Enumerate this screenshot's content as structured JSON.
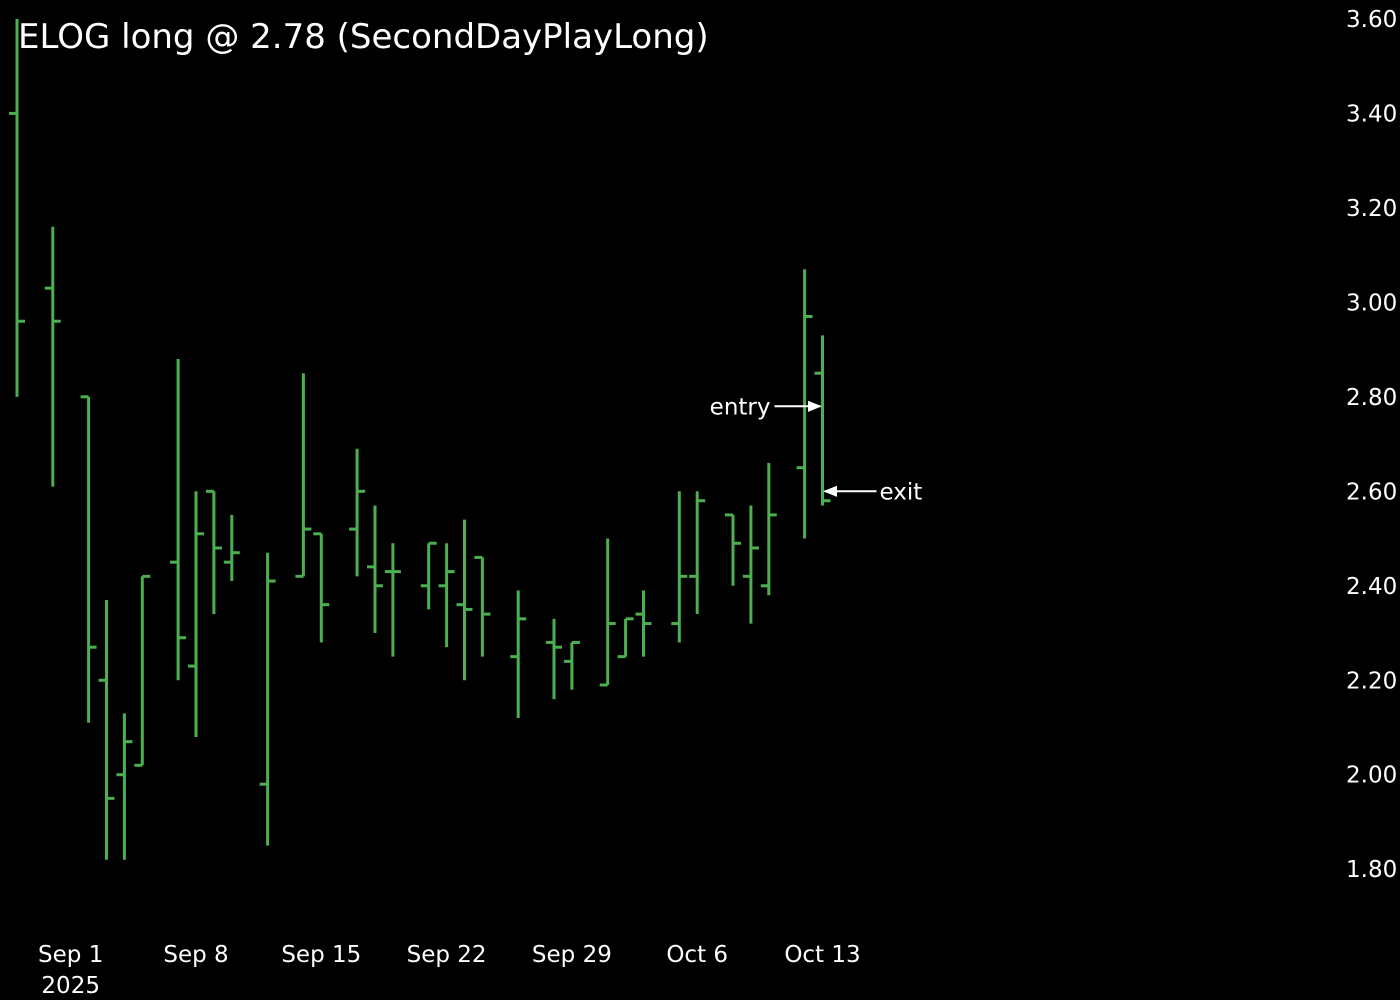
{
  "chart_data": {
    "type": "ohlc",
    "title": "ELOG long @ 2.78 (SecondDayPlayLong)",
    "bar_color": "#4caf50",
    "background": "#000000",
    "text_color": "#ffffff",
    "ylim": [
      1.72,
      3.64
    ],
    "y_axis_side": "right",
    "grid": false,
    "yticks": [
      "1.80",
      "2.00",
      "2.20",
      "2.40",
      "2.60",
      "2.80",
      "3.00",
      "3.20",
      "3.40",
      "3.60"
    ],
    "xticks": [
      {
        "date": "2025-09-01",
        "label": "Sep 1",
        "sublabel": "2025"
      },
      {
        "date": "2025-09-08",
        "label": "Sep 8"
      },
      {
        "date": "2025-09-15",
        "label": "Sep 15"
      },
      {
        "date": "2025-09-22",
        "label": "Sep 22"
      },
      {
        "date": "2025-09-29",
        "label": "Sep 29"
      },
      {
        "date": "2025-10-06",
        "label": "Oct 6"
      },
      {
        "date": "2025-10-13",
        "label": "Oct 13"
      }
    ],
    "bars": [
      {
        "date": "2025-08-29",
        "open": 3.4,
        "high": 3.6,
        "low": 2.8,
        "close": 2.96
      },
      {
        "date": "2025-08-31",
        "open": 3.03,
        "high": 3.16,
        "low": 2.61,
        "close": 2.96
      },
      {
        "date": "2025-09-02",
        "open": 2.8,
        "high": 2.8,
        "low": 2.11,
        "close": 2.27
      },
      {
        "date": "2025-09-03",
        "open": 2.2,
        "high": 2.37,
        "low": 1.82,
        "close": 1.95
      },
      {
        "date": "2025-09-04",
        "open": 2.0,
        "high": 2.13,
        "low": 1.82,
        "close": 2.07
      },
      {
        "date": "2025-09-05",
        "open": 2.02,
        "high": 2.42,
        "low": 2.02,
        "close": 2.42
      },
      {
        "date": "2025-09-07",
        "open": 2.45,
        "high": 2.88,
        "low": 2.2,
        "close": 2.29
      },
      {
        "date": "2025-09-08",
        "open": 2.23,
        "high": 2.6,
        "low": 2.08,
        "close": 2.51
      },
      {
        "date": "2025-09-09",
        "open": 2.6,
        "high": 2.6,
        "low": 2.34,
        "close": 2.48
      },
      {
        "date": "2025-09-10",
        "open": 2.45,
        "high": 2.55,
        "low": 2.41,
        "close": 2.47
      },
      {
        "date": "2025-09-12",
        "open": 1.98,
        "high": 2.47,
        "low": 1.85,
        "close": 2.41
      },
      {
        "date": "2025-09-14",
        "open": 2.42,
        "high": 2.85,
        "low": 2.42,
        "close": 2.52
      },
      {
        "date": "2025-09-15",
        "open": 2.51,
        "high": 2.51,
        "low": 2.28,
        "close": 2.36
      },
      {
        "date": "2025-09-17",
        "open": 2.52,
        "high": 2.69,
        "low": 2.42,
        "close": 2.6
      },
      {
        "date": "2025-09-18",
        "open": 2.44,
        "high": 2.57,
        "low": 2.3,
        "close": 2.4
      },
      {
        "date": "2025-09-19",
        "open": 2.43,
        "high": 2.49,
        "low": 2.25,
        "close": 2.43
      },
      {
        "date": "2025-09-21",
        "open": 2.4,
        "high": 2.49,
        "low": 2.35,
        "close": 2.49
      },
      {
        "date": "2025-09-22",
        "open": 2.4,
        "high": 2.49,
        "low": 2.27,
        "close": 2.43
      },
      {
        "date": "2025-09-23",
        "open": 2.36,
        "high": 2.54,
        "low": 2.2,
        "close": 2.35
      },
      {
        "date": "2025-09-24",
        "open": 2.46,
        "high": 2.46,
        "low": 2.25,
        "close": 2.34
      },
      {
        "date": "2025-09-26",
        "open": 2.25,
        "high": 2.39,
        "low": 2.12,
        "close": 2.33
      },
      {
        "date": "2025-09-28",
        "open": 2.28,
        "high": 2.33,
        "low": 2.16,
        "close": 2.27
      },
      {
        "date": "2025-09-29",
        "open": 2.24,
        "high": 2.28,
        "low": 2.18,
        "close": 2.28
      },
      {
        "date": "2025-10-01",
        "open": 2.19,
        "high": 2.5,
        "low": 2.19,
        "close": 2.32
      },
      {
        "date": "2025-10-02",
        "open": 2.25,
        "high": 2.33,
        "low": 2.25,
        "close": 2.33
      },
      {
        "date": "2025-10-03",
        "open": 2.34,
        "high": 2.39,
        "low": 2.25,
        "close": 2.32
      },
      {
        "date": "2025-10-05",
        "open": 2.32,
        "high": 2.6,
        "low": 2.28,
        "close": 2.42
      },
      {
        "date": "2025-10-06",
        "open": 2.42,
        "high": 2.6,
        "low": 2.34,
        "close": 2.58
      },
      {
        "date": "2025-10-08",
        "open": 2.55,
        "high": 2.55,
        "low": 2.4,
        "close": 2.49
      },
      {
        "date": "2025-10-09",
        "open": 2.42,
        "high": 2.57,
        "low": 2.32,
        "close": 2.48
      },
      {
        "date": "2025-10-10",
        "open": 2.4,
        "high": 2.66,
        "low": 2.38,
        "close": 2.55
      },
      {
        "date": "2025-10-12",
        "open": 2.65,
        "high": 3.07,
        "low": 2.5,
        "close": 2.97
      },
      {
        "date": "2025-10-13",
        "open": 2.85,
        "high": 2.93,
        "low": 2.57,
        "close": 2.58
      }
    ],
    "annotations": [
      {
        "label": "entry",
        "date": "2025-10-13",
        "price": 2.78,
        "side": "left"
      },
      {
        "label": "exit",
        "date": "2025-10-13",
        "price": 2.6,
        "side": "right"
      }
    ]
  }
}
